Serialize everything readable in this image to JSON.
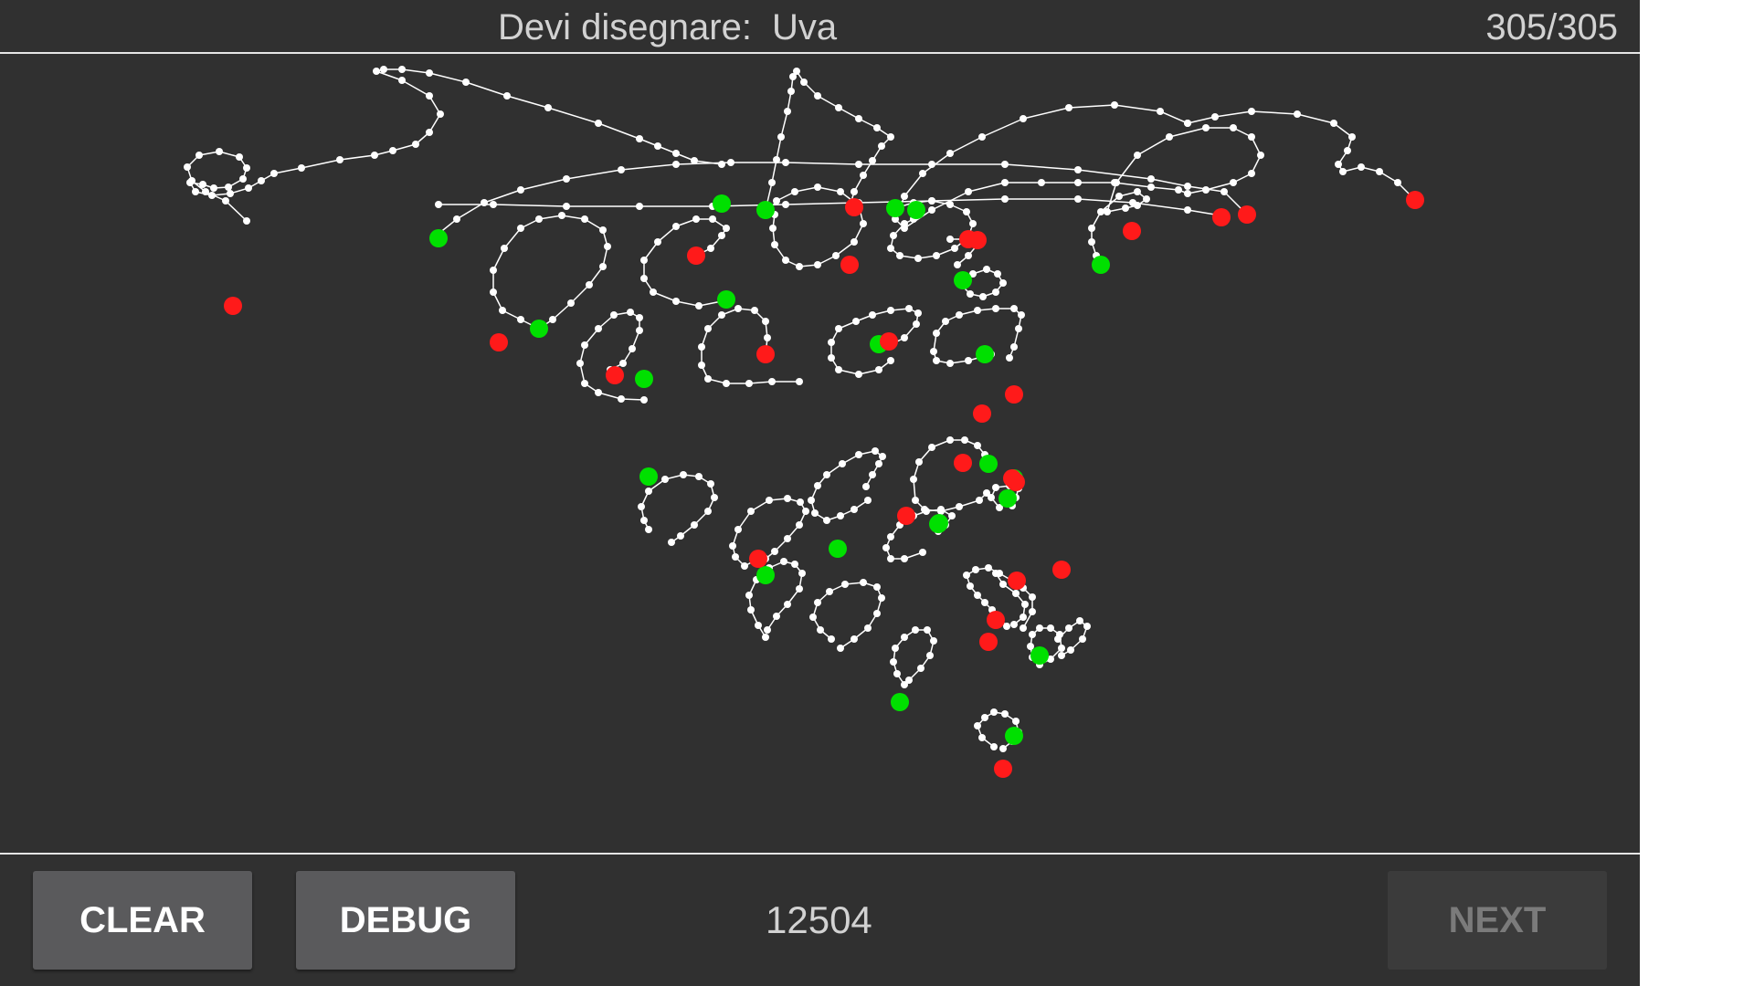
{
  "header": {
    "prompt_label": "Devi disegnare:",
    "prompt_word": "Uva",
    "counter": "305/305"
  },
  "footer": {
    "clear_label": "CLEAR",
    "debug_label": "DEBUG",
    "score": "12504",
    "next_label": "NEXT"
  },
  "colors": {
    "background": "#303030",
    "stroke": "#ffffff",
    "stroke_start": "#00e000",
    "stroke_end": "#ff1a1a",
    "text": "#d2d2d2",
    "button": "#5a5a5c",
    "button_disabled": "#3b3b3b"
  }
}
